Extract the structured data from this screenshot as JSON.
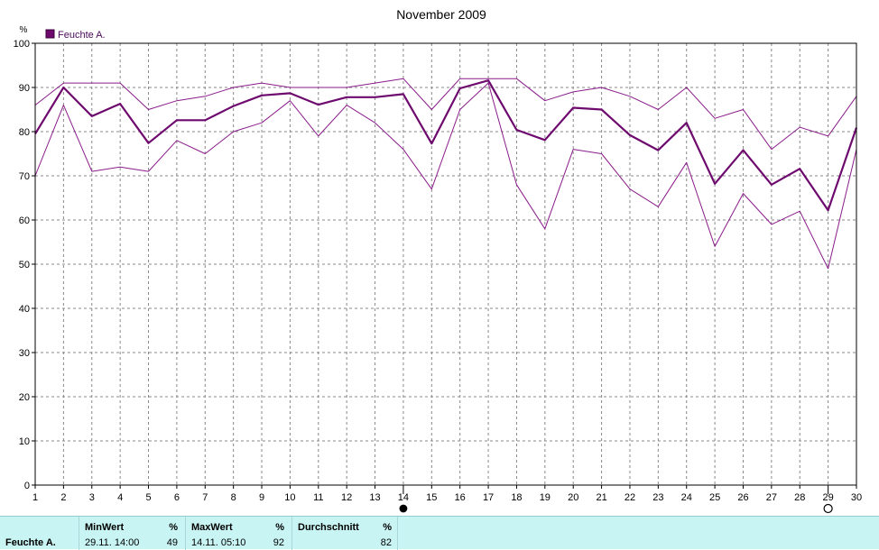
{
  "chart_data": {
    "type": "line",
    "title": "November 2009",
    "ylabel": "%",
    "ylim": [
      0,
      100
    ],
    "yticks": [
      0,
      10,
      20,
      30,
      40,
      50,
      60,
      70,
      80,
      90,
      100
    ],
    "x": [
      1,
      2,
      3,
      4,
      5,
      6,
      7,
      8,
      9,
      10,
      11,
      12,
      13,
      14,
      15,
      16,
      17,
      18,
      19,
      20,
      21,
      22,
      23,
      24,
      25,
      26,
      27,
      28,
      29,
      30
    ],
    "grid": true,
    "legend": {
      "position": "top-left",
      "entries": [
        "Feuchte A."
      ]
    },
    "series": [
      {
        "name": "Feuchte A.",
        "role": "average",
        "color": "#6e0a6e",
        "values": [
          79.5,
          90,
          83.5,
          86.3,
          77.4,
          82.6,
          82.6,
          85.8,
          88.2,
          88.7,
          86.1,
          87.8,
          87.8,
          88.5,
          77.3,
          89.8,
          91.6,
          80.4,
          78.1,
          85.4,
          85.0,
          79.2,
          75.8,
          82.0,
          68.2,
          75.8,
          68.0,
          71.6,
          62.2,
          80.9
        ]
      },
      {
        "role": "max",
        "color": "#8a1c8a",
        "values": [
          86,
          91,
          91,
          91,
          85,
          87,
          88,
          90,
          91,
          90,
          90,
          90,
          91,
          92,
          85,
          92,
          92,
          92,
          87,
          89,
          90,
          88,
          85,
          90,
          83,
          85,
          76,
          81,
          79,
          88
        ]
      },
      {
        "role": "min",
        "color": "#8a1c8a",
        "values": [
          70,
          86,
          71,
          72,
          71,
          78,
          75,
          80,
          82,
          87,
          79,
          86,
          82,
          76,
          67,
          85,
          91,
          68,
          58,
          76,
          75,
          67,
          63,
          73,
          54,
          66,
          59,
          62,
          49,
          76
        ]
      }
    ],
    "markers": [
      {
        "type": "min",
        "x": 29,
        "style": "open-circle"
      },
      {
        "type": "max",
        "x": 14,
        "style": "filled-circle"
      }
    ]
  },
  "stats": {
    "row_label": "Feuchte A.",
    "min": {
      "header": "MinWert",
      "unit": "%",
      "date": "29.11.  14:00",
      "value": "49"
    },
    "max": {
      "header": "MaxWert",
      "unit": "%",
      "date": "14.11.  05:10",
      "value": "92"
    },
    "avg": {
      "header": "Durchschnitt",
      "unit": "%",
      "value": "82"
    }
  }
}
